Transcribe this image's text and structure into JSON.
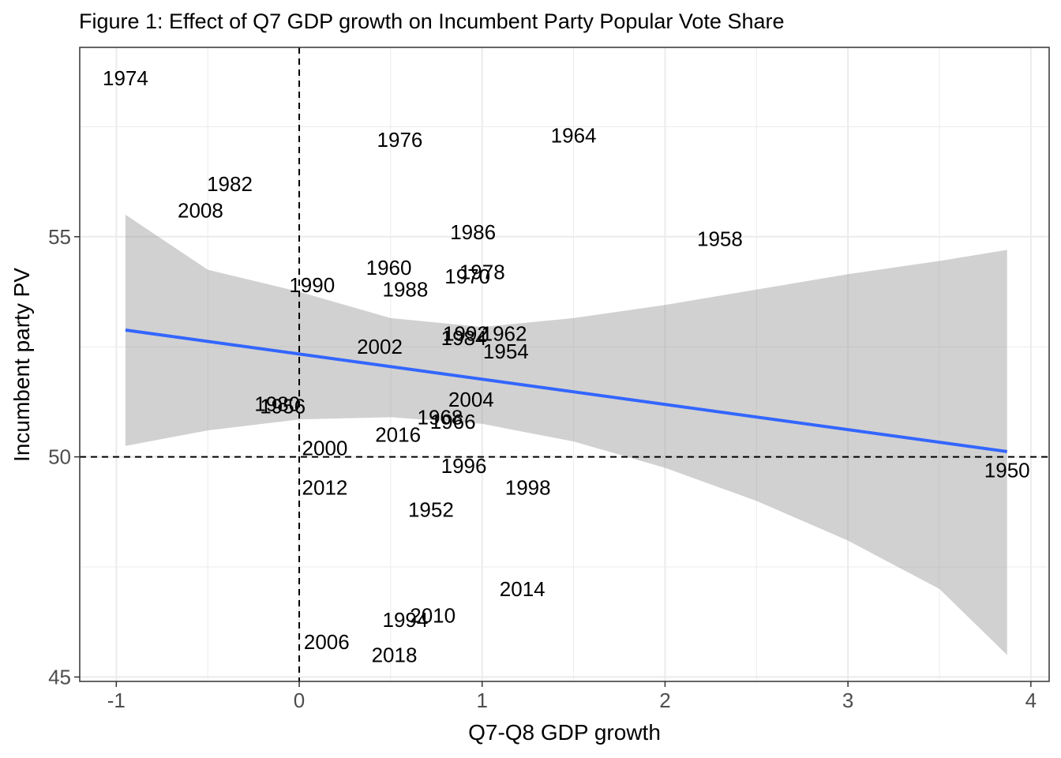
{
  "colors": {
    "fit_line": "#3366ff",
    "ribbon": "#999999",
    "grid": "#ebebeb",
    "panel_border": "#333333",
    "reference_line": "#000000",
    "text": "#000000"
  },
  "chart_data": {
    "type": "scatter",
    "title": "Figure 1: Effect of Q7 GDP growth on Incumbent Party Popular Vote Share",
    "xlabel": "Q7-Q8 GDP growth",
    "ylabel": "Incumbent party PV",
    "xlim": [
      -1.2,
      4.1
    ],
    "ylim": [
      44.9,
      59.3
    ],
    "x_ticks": [
      -1,
      0,
      1,
      2,
      3,
      4
    ],
    "x_tick_labels": [
      "-1",
      "0",
      "1",
      "2",
      "3",
      "4"
    ],
    "y_ticks": [
      45,
      50,
      55
    ],
    "y_tick_labels": [
      "45",
      "50",
      "55"
    ],
    "x_minor_ticks": [
      -0.5,
      0.5,
      1.5,
      2.5,
      3.5
    ],
    "y_minor_ticks": [
      47.5,
      52.5,
      57.5
    ],
    "grid": true,
    "reference_lines": {
      "x": 0,
      "y": 50,
      "style": "dashed"
    },
    "points": [
      {
        "label": "1974",
        "x": -0.95,
        "y": 58.6
      },
      {
        "label": "1964",
        "x": 1.5,
        "y": 57.3
      },
      {
        "label": "1976",
        "x": 0.55,
        "y": 57.2
      },
      {
        "label": "1982",
        "x": -0.38,
        "y": 56.2
      },
      {
        "label": "2008",
        "x": -0.54,
        "y": 55.6
      },
      {
        "label": "1986",
        "x": 0.95,
        "y": 55.1
      },
      {
        "label": "1958",
        "x": 2.3,
        "y": 54.95
      },
      {
        "label": "1960",
        "x": 0.49,
        "y": 54.3
      },
      {
        "label": "1978",
        "x": 1.0,
        "y": 54.2
      },
      {
        "label": "1970",
        "x": 0.92,
        "y": 54.1
      },
      {
        "label": "1990",
        "x": 0.07,
        "y": 53.9
      },
      {
        "label": "1988",
        "x": 0.58,
        "y": 53.8
      },
      {
        "label": "1992",
        "x": 0.91,
        "y": 52.8
      },
      {
        "label": "1962",
        "x": 1.12,
        "y": 52.8
      },
      {
        "label": "1984",
        "x": 0.9,
        "y": 52.7
      },
      {
        "label": "1954",
        "x": 1.13,
        "y": 52.4
      },
      {
        "label": "2002",
        "x": 0.44,
        "y": 52.5
      },
      {
        "label": "2004",
        "x": 0.94,
        "y": 51.3
      },
      {
        "label": "1980",
        "x": -0.12,
        "y": 51.2
      },
      {
        "label": "1956",
        "x": -0.09,
        "y": 51.15
      },
      {
        "label": "1968",
        "x": 0.77,
        "y": 50.9
      },
      {
        "label": "1966",
        "x": 0.84,
        "y": 50.8
      },
      {
        "label": "2016",
        "x": 0.54,
        "y": 50.5
      },
      {
        "label": "2000",
        "x": 0.14,
        "y": 50.2
      },
      {
        "label": "1996",
        "x": 0.9,
        "y": 49.8
      },
      {
        "label": "1998",
        "x": 1.25,
        "y": 49.3
      },
      {
        "label": "2012",
        "x": 0.14,
        "y": 49.3
      },
      {
        "label": "1950",
        "x": 3.87,
        "y": 49.7
      },
      {
        "label": "1952",
        "x": 0.72,
        "y": 48.8
      },
      {
        "label": "2014",
        "x": 1.22,
        "y": 47.0
      },
      {
        "label": "2010",
        "x": 0.73,
        "y": 46.4
      },
      {
        "label": "1994",
        "x": 0.58,
        "y": 46.3
      },
      {
        "label": "2006",
        "x": 0.15,
        "y": 45.8
      },
      {
        "label": "2018",
        "x": 0.52,
        "y": 45.5
      }
    ],
    "regression": {
      "x": [
        -0.95,
        3.87
      ],
      "y": [
        52.88,
        50.12
      ]
    },
    "confidence_band": {
      "x": [
        -0.95,
        -0.5,
        0.0,
        0.5,
        1.0,
        1.5,
        2.0,
        2.5,
        3.0,
        3.5,
        3.87
      ],
      "lower": [
        50.25,
        50.6,
        50.85,
        50.9,
        50.75,
        50.35,
        49.75,
        49.0,
        48.1,
        47.0,
        45.5
      ],
      "upper": [
        55.5,
        54.25,
        53.75,
        53.15,
        52.95,
        53.15,
        53.45,
        53.8,
        54.15,
        54.45,
        54.7
      ]
    }
  }
}
